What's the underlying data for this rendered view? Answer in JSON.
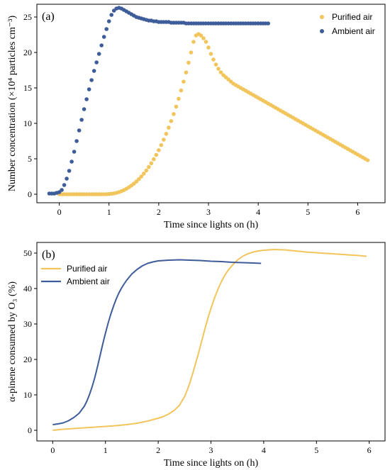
{
  "colors": {
    "purified": "#F2C55C",
    "ambient": "#3E5C9A"
  },
  "chart_data": [
    {
      "type": "scatter",
      "panel_label": "(a)",
      "xlabel": "Time since lights on (h)",
      "ylabel": "Number concentration (×10⁴ particles cm⁻³)",
      "xlim": [
        -0.45,
        6.55
      ],
      "ylim": [
        -1.2,
        26.8
      ],
      "xticks": [
        0,
        1,
        2,
        3,
        4,
        5,
        6
      ],
      "yticks": [
        0,
        5,
        10,
        15,
        20,
        25
      ],
      "legend": "top-right",
      "series": [
        {
          "name": "Purified air",
          "color": "#F2C55C",
          "x": [
            0.0,
            0.05,
            0.1,
            0.15,
            0.2,
            0.25,
            0.3,
            0.35,
            0.4,
            0.45,
            0.5,
            0.55,
            0.6,
            0.65,
            0.7,
            0.75,
            0.8,
            0.85,
            0.9,
            0.95,
            1.0,
            1.05,
            1.1,
            1.15,
            1.2,
            1.25,
            1.3,
            1.35,
            1.4,
            1.45,
            1.5,
            1.55,
            1.6,
            1.65,
            1.7,
            1.75,
            1.8,
            1.85,
            1.9,
            1.95,
            2.0,
            2.05,
            2.1,
            2.15,
            2.2,
            2.25,
            2.3,
            2.35,
            2.4,
            2.45,
            2.5,
            2.55,
            2.6,
            2.65,
            2.7,
            2.75,
            2.8,
            2.85,
            2.9,
            2.95,
            3.0,
            3.05,
            3.1,
            3.15,
            3.2,
            3.25,
            3.3,
            3.35,
            3.4,
            3.45,
            3.5,
            3.55,
            3.6,
            3.65,
            3.7,
            3.75,
            3.8,
            3.85,
            3.9,
            3.95,
            4.0,
            4.05,
            4.1,
            4.15,
            4.2,
            4.25,
            4.3,
            4.35,
            4.4,
            4.45,
            4.5,
            4.55,
            4.6,
            4.65,
            4.7,
            4.75,
            4.8,
            4.85,
            4.9,
            4.95,
            5.0,
            5.05,
            5.1,
            5.15,
            5.2,
            5.25,
            5.3,
            5.35,
            5.4,
            5.45,
            5.5,
            5.55,
            5.6,
            5.65,
            5.7,
            5.75,
            5.8,
            5.85,
            5.9,
            5.95,
            6.0,
            6.05,
            6.1,
            6.15,
            6.2
          ],
          "y": [
            0.0,
            0.0,
            0.0,
            0.0,
            0.0,
            0.0,
            0.0,
            0.0,
            0.0,
            0.0,
            0.0,
            0.0,
            0.0,
            0.0,
            0.0,
            0.0,
            0.0,
            0.0,
            0.0,
            0.01,
            0.03,
            0.07,
            0.12,
            0.2,
            0.3,
            0.43,
            0.59,
            0.77,
            0.98,
            1.22,
            1.49,
            1.79,
            2.13,
            2.5,
            2.91,
            3.35,
            3.84,
            4.37,
            4.94,
            5.55,
            6.22,
            6.93,
            7.7,
            8.52,
            9.39,
            10.32,
            11.31,
            12.36,
            13.47,
            14.64,
            15.88,
            17.18,
            18.56,
            20.0,
            21.5,
            22.4,
            22.6,
            22.4,
            22.0,
            21.5,
            20.7,
            19.8,
            19.0,
            18.3,
            17.7,
            17.2,
            16.8,
            16.5,
            16.2,
            15.9,
            15.6,
            15.4,
            15.2,
            15.0,
            14.8,
            14.6,
            14.4,
            14.2,
            14.0,
            13.8,
            13.6,
            13.4,
            13.2,
            13.0,
            12.8,
            12.6,
            12.4,
            12.2,
            12.0,
            11.8,
            11.6,
            11.4,
            11.2,
            11.0,
            10.8,
            10.6,
            10.4,
            10.2,
            10.0,
            9.8,
            9.6,
            9.4,
            9.2,
            9.0,
            8.8,
            8.6,
            8.4,
            8.2,
            8.0,
            7.8,
            7.6,
            7.4,
            7.2,
            7.0,
            6.8,
            6.6,
            6.4,
            6.2,
            6.0,
            5.8,
            5.6,
            5.4,
            5.2,
            5.0,
            4.8
          ]
        },
        {
          "name": "Ambient air",
          "color": "#3E5C9A",
          "x": [
            -0.2,
            -0.15,
            -0.1,
            -0.05,
            0.0,
            0.05,
            0.1,
            0.15,
            0.2,
            0.25,
            0.3,
            0.35,
            0.4,
            0.45,
            0.5,
            0.55,
            0.6,
            0.65,
            0.7,
            0.75,
            0.8,
            0.85,
            0.9,
            0.95,
            1.0,
            1.05,
            1.1,
            1.15,
            1.2,
            1.25,
            1.3,
            1.35,
            1.4,
            1.45,
            1.5,
            1.55,
            1.6,
            1.65,
            1.7,
            1.75,
            1.8,
            1.85,
            1.9,
            1.95,
            2.0,
            2.05,
            2.1,
            2.15,
            2.2,
            2.25,
            2.3,
            2.35,
            2.4,
            2.45,
            2.5,
            2.55,
            2.6,
            2.65,
            2.7,
            2.75,
            2.8,
            2.85,
            2.9,
            2.95,
            3.0,
            3.05,
            3.1,
            3.15,
            3.2,
            3.25,
            3.3,
            3.35,
            3.4,
            3.45,
            3.5,
            3.55,
            3.6,
            3.65,
            3.7,
            3.75,
            3.8,
            3.85,
            3.9,
            3.95,
            4.0,
            4.05,
            4.1,
            4.15,
            4.2
          ],
          "y": [
            0.1,
            0.1,
            0.1,
            0.2,
            0.3,
            0.6,
            1.3,
            2.2,
            3.3,
            4.6,
            6.0,
            7.5,
            9.0,
            10.5,
            12.0,
            13.4,
            14.8,
            16.1,
            17.4,
            18.6,
            19.8,
            21.0,
            22.2,
            23.3,
            24.4,
            25.3,
            25.9,
            26.2,
            26.3,
            26.2,
            26.0,
            25.8,
            25.6,
            25.4,
            25.2,
            25.0,
            24.9,
            24.8,
            24.7,
            24.6,
            24.5,
            24.5,
            24.4,
            24.4,
            24.3,
            24.3,
            24.3,
            24.3,
            24.3,
            24.2,
            24.2,
            24.2,
            24.2,
            24.2,
            24.2,
            24.1,
            24.1,
            24.1,
            24.1,
            24.1,
            24.1,
            24.1,
            24.1,
            24.1,
            24.1,
            24.1,
            24.1,
            24.1,
            24.1,
            24.1,
            24.1,
            24.1,
            24.1,
            24.1,
            24.1,
            24.1,
            24.1,
            24.1,
            24.1,
            24.1,
            24.1,
            24.1,
            24.1,
            24.1,
            24.1,
            24.1,
            24.1,
            24.1,
            24.1
          ]
        }
      ]
    },
    {
      "type": "line",
      "panel_label": "(b)",
      "xlabel": "Time since lights on (h)",
      "ylabel": "α-pinene consumed by O₃ (%)",
      "xlim": [
        -0.3,
        6.3
      ],
      "ylim": [
        -3,
        53
      ],
      "xticks": [
        0,
        1,
        2,
        3,
        4,
        5,
        6
      ],
      "yticks": [
        0,
        10,
        20,
        30,
        40,
        50
      ],
      "legend": "top-left",
      "series": [
        {
          "name": "Purified air",
          "color": "#F2C55C",
          "x": [
            0.0,
            0.2,
            0.4,
            0.6,
            0.8,
            1.0,
            1.2,
            1.4,
            1.6,
            1.8,
            2.0,
            2.1,
            2.2,
            2.3,
            2.4,
            2.5,
            2.55,
            2.6,
            2.65,
            2.7,
            2.75,
            2.8,
            2.85,
            2.9,
            2.95,
            3.0,
            3.05,
            3.1,
            3.15,
            3.2,
            3.25,
            3.3,
            3.35,
            3.4,
            3.5,
            3.6,
            3.7,
            3.8,
            3.9,
            4.0,
            4.2,
            4.4,
            4.6,
            4.8,
            5.0,
            5.2,
            5.4,
            5.6,
            5.8,
            5.95
          ],
          "y": [
            0.0,
            0.3,
            0.5,
            0.7,
            0.9,
            1.1,
            1.3,
            1.6,
            2.0,
            2.6,
            3.4,
            3.9,
            4.6,
            5.6,
            7.0,
            9.5,
            11.3,
            13.4,
            15.8,
            18.4,
            21.0,
            23.8,
            26.6,
            29.4,
            32.0,
            34.4,
            36.6,
            38.6,
            40.4,
            42.0,
            43.4,
            44.6,
            45.6,
            46.5,
            48.0,
            49.1,
            49.8,
            50.3,
            50.6,
            50.8,
            51.0,
            50.9,
            50.6,
            50.3,
            50.1,
            49.9,
            49.7,
            49.5,
            49.3,
            49.1
          ]
        },
        {
          "name": "Ambient air",
          "color": "#3E5C9A",
          "x": [
            0.0,
            0.1,
            0.2,
            0.3,
            0.4,
            0.5,
            0.6,
            0.65,
            0.7,
            0.75,
            0.8,
            0.85,
            0.9,
            0.95,
            1.0,
            1.05,
            1.1,
            1.15,
            1.2,
            1.25,
            1.3,
            1.35,
            1.4,
            1.5,
            1.6,
            1.7,
            1.8,
            1.9,
            2.0,
            2.2,
            2.4,
            2.6,
            2.8,
            3.0,
            3.2,
            3.4,
            3.6,
            3.8,
            3.95
          ],
          "y": [
            1.6,
            1.8,
            2.1,
            2.7,
            3.6,
            4.8,
            6.8,
            8.3,
            10.2,
            12.4,
            15.0,
            18.0,
            21.2,
            24.4,
            27.4,
            30.2,
            32.7,
            34.9,
            36.9,
            38.6,
            40.0,
            41.2,
            42.3,
            44.1,
            45.4,
            46.4,
            47.1,
            47.5,
            47.8,
            48.0,
            48.1,
            48.0,
            47.9,
            47.7,
            47.6,
            47.4,
            47.3,
            47.2,
            47.1
          ]
        }
      ]
    }
  ]
}
